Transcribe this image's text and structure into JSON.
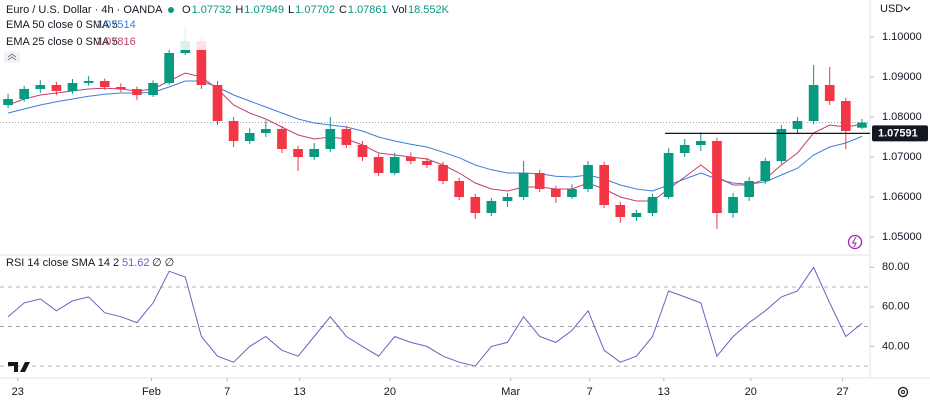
{
  "chart_data": {
    "type": "candlestick",
    "title": "Euro / U.S. Dollar · 4h · OANDA",
    "ohlc_labels": [
      "O",
      "H",
      "L",
      "C",
      "Vol"
    ],
    "ohlc_values": [
      1.07732,
      1.07949,
      1.07702,
      1.07861,
      "18.552K"
    ],
    "currency": "USD",
    "up_color": "#089981",
    "down_color": "#f23645",
    "xlim": [
      0,
      54
    ],
    "xticks": [
      {
        "value": 1.1,
        "label": "23"
      },
      {
        "value": 9.4,
        "label": "Feb"
      },
      {
        "value": 14.1,
        "label": "7"
      },
      {
        "value": 18.6,
        "label": "13"
      },
      {
        "value": 24.2,
        "label": "20"
      },
      {
        "value": 31.7,
        "label": "Mar"
      },
      {
        "value": 36.6,
        "label": "7"
      },
      {
        "value": 41.2,
        "label": "13"
      },
      {
        "value": 46.6,
        "label": "20"
      },
      {
        "value": 52.3,
        "label": "27"
      }
    ],
    "ylim": [
      1.0455,
      1.10925
    ],
    "yticks": [
      {
        "value": 1.1,
        "label": "1.10000"
      },
      {
        "value": 1.09,
        "label": "1.09000"
      },
      {
        "value": 1.08,
        "label": "1.08000"
      },
      {
        "value": 1.07,
        "label": "1.07000"
      },
      {
        "value": 1.06,
        "label": "1.06000"
      },
      {
        "value": 1.05,
        "label": "1.05000"
      }
    ],
    "level": 1.07591,
    "candles": [
      [
        1.083,
        1.0858,
        1.0822,
        1.0845
      ],
      [
        1.0845,
        1.0878,
        1.0838,
        1.087
      ],
      [
        1.087,
        1.0892,
        1.086,
        1.088
      ],
      [
        1.088,
        1.0888,
        1.0855,
        1.0865
      ],
      [
        1.0865,
        1.0895,
        1.0858,
        1.0885
      ],
      [
        1.0885,
        1.0902,
        1.0878,
        1.089
      ],
      [
        1.089,
        1.0896,
        1.0868,
        1.0875
      ],
      [
        1.0875,
        1.0884,
        1.0862,
        1.087
      ],
      [
        1.087,
        1.0876,
        1.0842,
        1.0855
      ],
      [
        1.0855,
        1.0892,
        1.085,
        1.0885
      ],
      [
        1.0885,
        1.0975,
        1.088,
        1.096
      ],
      [
        1.096,
        1.1025,
        1.0955,
        1.099
      ],
      [
        1.099,
        1.0998,
        1.087,
        1.088
      ],
      [
        1.088,
        1.089,
        1.078,
        1.079
      ],
      [
        1.079,
        1.08,
        1.0725,
        1.074
      ],
      [
        1.074,
        1.0772,
        1.0732,
        1.076
      ],
      [
        1.076,
        1.0792,
        1.075,
        1.077
      ],
      [
        1.077,
        1.0778,
        1.071,
        1.072
      ],
      [
        1.072,
        1.0728,
        1.0665,
        1.07
      ],
      [
        1.07,
        1.0735,
        1.0692,
        1.072
      ],
      [
        1.072,
        1.08,
        1.0712,
        1.077
      ],
      [
        1.077,
        1.0778,
        1.0722,
        1.073
      ],
      [
        1.073,
        1.074,
        1.069,
        1.07
      ],
      [
        1.07,
        1.0708,
        1.0652,
        1.066
      ],
      [
        1.066,
        1.071,
        1.0655,
        1.07
      ],
      [
        1.07,
        1.0712,
        1.0682,
        1.069
      ],
      [
        1.069,
        1.0698,
        1.0672,
        1.068
      ],
      [
        1.068,
        1.0688,
        1.0632,
        1.064
      ],
      [
        1.064,
        1.0648,
        1.0592,
        1.06
      ],
      [
        1.06,
        1.0608,
        1.0545,
        1.056
      ],
      [
        1.056,
        1.0598,
        1.0552,
        1.059
      ],
      [
        1.059,
        1.061,
        1.0575,
        1.06
      ],
      [
        1.06,
        1.069,
        1.0592,
        1.066
      ],
      [
        1.066,
        1.0668,
        1.0612,
        1.062
      ],
      [
        1.062,
        1.0628,
        1.0585,
        1.06
      ],
      [
        1.06,
        1.0632,
        1.0595,
        1.062
      ],
      [
        1.062,
        1.069,
        1.0612,
        1.068
      ],
      [
        1.068,
        1.0688,
        1.0572,
        1.058
      ],
      [
        1.058,
        1.0588,
        1.0535,
        1.055
      ],
      [
        1.055,
        1.0568,
        1.054,
        1.056
      ],
      [
        1.056,
        1.0608,
        1.0552,
        1.06
      ],
      [
        1.06,
        1.0722,
        1.0595,
        1.071
      ],
      [
        1.071,
        1.0745,
        1.07,
        1.073
      ],
      [
        1.073,
        1.0762,
        1.0715,
        1.074
      ],
      [
        1.074,
        1.0748,
        1.052,
        1.056
      ],
      [
        1.056,
        1.061,
        1.0548,
        1.06
      ],
      [
        1.06,
        1.065,
        1.059,
        1.064
      ],
      [
        1.064,
        1.0698,
        1.0632,
        1.069
      ],
      [
        1.069,
        1.078,
        1.0682,
        1.077
      ],
      [
        1.077,
        1.08,
        1.076,
        1.079
      ],
      [
        1.079,
        1.093,
        1.0782,
        1.088
      ],
      [
        1.088,
        1.0925,
        1.083,
        1.084
      ],
      [
        1.084,
        1.0848,
        1.072,
        1.0765
      ],
      [
        1.07732,
        1.07949,
        1.07702,
        1.07861
      ]
    ],
    "overlays": [
      {
        "name": "EMA 50 close 0 SMA 5",
        "last": 1.07514,
        "color": "#3d7fd9",
        "values": [
          1.081,
          1.082,
          1.083,
          1.0838,
          1.0845,
          1.0852,
          1.0857,
          1.086,
          1.086,
          1.0862,
          1.0875,
          1.089,
          1.089,
          1.0875,
          1.0855,
          1.084,
          1.0825,
          1.081,
          1.0795,
          1.0785,
          1.078,
          1.0775,
          1.0765,
          1.075,
          1.074,
          1.0732,
          1.0725,
          1.0712,
          1.0698,
          1.068,
          1.0668,
          1.066,
          1.066,
          1.0658,
          1.0652,
          1.065,
          1.0655,
          1.0645,
          1.063,
          1.062,
          1.0615,
          1.063,
          1.0645,
          1.066,
          1.0645,
          1.0635,
          1.0632,
          1.0638,
          1.0655,
          1.0672,
          1.0705,
          1.0725,
          1.0735,
          1.07514
        ]
      },
      {
        "name": "EMA 25 close 0 SMA 5",
        "last": 1.07816,
        "color": "#c2406c",
        "values": [
          1.083,
          1.0845,
          1.0855,
          1.086,
          1.0865,
          1.087,
          1.0872,
          1.087,
          1.0865,
          1.087,
          1.089,
          1.091,
          1.09,
          1.087,
          1.083,
          1.081,
          1.0795,
          1.0775,
          1.0755,
          1.0745,
          1.075,
          1.0745,
          1.073,
          1.071,
          1.0705,
          1.07,
          1.0695,
          1.068,
          1.066,
          1.0635,
          1.062,
          1.0615,
          1.0625,
          1.0625,
          1.062,
          1.062,
          1.0635,
          1.062,
          1.06,
          1.059,
          1.059,
          1.062,
          1.065,
          1.068,
          1.065,
          1.063,
          1.063,
          1.0645,
          1.068,
          1.071,
          1.076,
          1.078,
          1.0775,
          1.07816
        ]
      }
    ],
    "rsi": {
      "name": "RSI 14 close SMA 14 2",
      "last": 51.62,
      "extra": "∅ ∅",
      "color": "#7e57c2",
      "ylim": [
        24,
        86.2
      ],
      "yticks": [
        {
          "value": 80,
          "label": "80.00"
        },
        {
          "value": 60,
          "label": "60.00"
        },
        {
          "value": 40,
          "label": "40.00"
        }
      ],
      "bands": [
        70,
        50,
        30
      ],
      "values": [
        55,
        62,
        64,
        58,
        63,
        65,
        57,
        55,
        52,
        62,
        78,
        75,
        45,
        35,
        32,
        40,
        45,
        38,
        35,
        45,
        55,
        45,
        40,
        35,
        45,
        42,
        40,
        35,
        32,
        30,
        40,
        42,
        55,
        45,
        42,
        48,
        58,
        38,
        32,
        35,
        45,
        68,
        65,
        62,
        35,
        45,
        52,
        58,
        65,
        68,
        80,
        62,
        45,
        51.62
      ]
    }
  }
}
